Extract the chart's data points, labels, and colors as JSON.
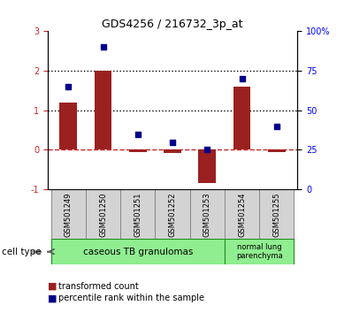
{
  "title": "GDS4256 / 216732_3p_at",
  "samples": [
    "GSM501249",
    "GSM501250",
    "GSM501251",
    "GSM501252",
    "GSM501253",
    "GSM501254",
    "GSM501255"
  ],
  "transformed_count": [
    1.2,
    2.0,
    -0.05,
    -0.07,
    -0.85,
    1.6,
    -0.05
  ],
  "percentile_rank": [
    65,
    90,
    35,
    30,
    25,
    70,
    40
  ],
  "ylim_left": [
    -1,
    3
  ],
  "ylim_right": [
    0,
    100
  ],
  "yticks_left": [
    -1,
    0,
    1,
    2,
    3
  ],
  "yticks_right": [
    0,
    25,
    50,
    75,
    100
  ],
  "ytick_labels_right": [
    "0",
    "25",
    "50",
    "75",
    "100%"
  ],
  "hlines_dotted": [
    1,
    2
  ],
  "hline_dashed_red": 0,
  "cell_type_groups": [
    {
      "label": "caseous TB granulomas",
      "span": [
        0,
        4
      ],
      "color": "#90EE90"
    },
    {
      "label": "normal lung\nparenchyma",
      "span": [
        5,
        6
      ],
      "color": "#90EE90"
    }
  ],
  "bar_color": "#9B2020",
  "scatter_color": "#00008B",
  "bar_width": 0.5,
  "legend_labels": [
    "transformed count",
    "percentile rank within the sample"
  ],
  "legend_colors": [
    "#9B2020",
    "#00008B"
  ],
  "cell_type_label": "cell type",
  "plot_bg": "#FFFFFF",
  "label_bg": "#D3D3D3"
}
